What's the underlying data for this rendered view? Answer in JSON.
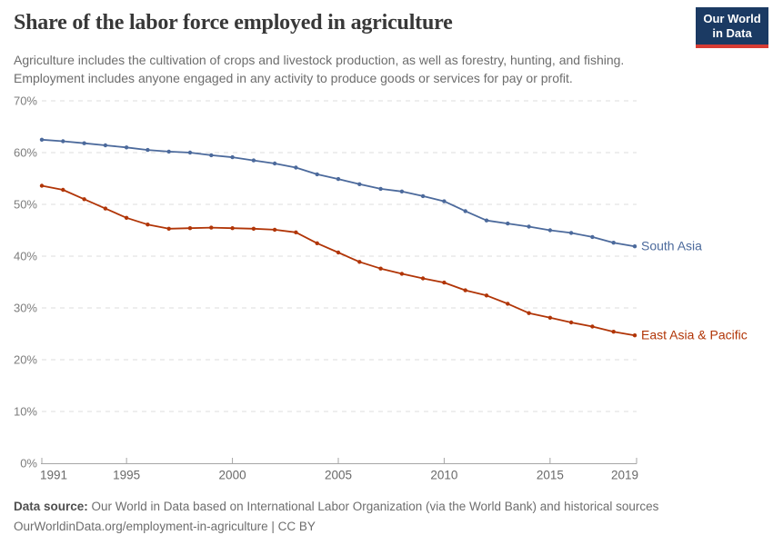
{
  "header": {
    "title": "Share of the labor force employed in agriculture",
    "subtitle_lines": [
      "Agriculture includes the cultivation of crops and livestock production, as well as forestry, hunting, and fishing.",
      "Employment includes anyone engaged in any activity to produce goods or services for pay or profit."
    ],
    "logo": {
      "line1": "Our World",
      "line2": "in Data"
    }
  },
  "chart_data": {
    "type": "line",
    "title": "Share of the labor force employed in agriculture",
    "x": [
      1991,
      1992,
      1993,
      1994,
      1995,
      1996,
      1997,
      1998,
      1999,
      2000,
      2001,
      2002,
      2003,
      2004,
      2005,
      2006,
      2007,
      2008,
      2009,
      2010,
      2011,
      2012,
      2013,
      2014,
      2015,
      2016,
      2017,
      2018,
      2019
    ],
    "series": [
      {
        "name": "South Asia",
        "color": "#4C6A9C",
        "values": [
          62.5,
          62.2,
          61.8,
          61.4,
          61.0,
          60.5,
          60.2,
          60.0,
          59.5,
          59.1,
          58.5,
          57.9,
          57.1,
          55.8,
          54.9,
          53.9,
          53.0,
          52.5,
          51.6,
          50.6,
          48.7,
          46.9,
          46.3,
          45.7,
          45.0,
          44.5,
          43.7,
          42.6,
          41.9
        ]
      },
      {
        "name": "East Asia & Pacific",
        "color": "#B13507",
        "values": [
          53.6,
          52.8,
          51.0,
          49.2,
          47.4,
          46.1,
          45.3,
          45.4,
          45.5,
          45.4,
          45.3,
          45.1,
          44.6,
          42.5,
          40.7,
          38.9,
          37.6,
          36.6,
          35.7,
          34.9,
          33.4,
          32.4,
          30.8,
          29.0,
          28.1,
          27.2,
          26.4,
          25.4,
          24.7
        ]
      }
    ],
    "xticks": [
      1991,
      1995,
      2000,
      2005,
      2010,
      2015,
      2019
    ],
    "yticks": [
      0,
      10,
      20,
      30,
      40,
      50,
      60,
      70
    ],
    "ytick_suffix": "%",
    "xlim": [
      1991,
      2019
    ],
    "ylim": [
      0,
      70
    ],
    "grid": "horizontal-dashed",
    "legend_position": "line-end-labels",
    "xlabel": "",
    "ylabel": ""
  },
  "footer": {
    "source_label": "Data source:",
    "source_text": " Our World in Data based on International Labor Organization (via the World Bank) and historical sources",
    "license_line": "OurWorldinData.org/employment-in-agriculture | CC BY"
  },
  "colors": {
    "grid": "#dedede",
    "axis": "#a6a6a6",
    "y_tick_label": "#7d7d7d",
    "x_tick_label": "#696969"
  }
}
